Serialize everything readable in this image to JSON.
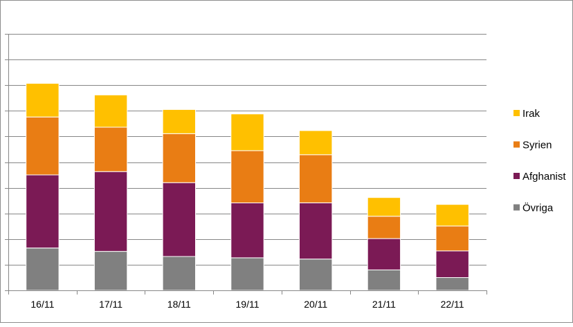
{
  "chart_data": {
    "type": "bar",
    "stacked": true,
    "categories": [
      "16/11",
      "17/11",
      "18/11",
      "19/11",
      "20/11",
      "21/11",
      "22/11"
    ],
    "series": [
      {
        "name": "Övriga",
        "color": "#808080",
        "values": [
          1.65,
          1.52,
          1.32,
          1.27,
          1.22,
          0.8,
          0.5
        ]
      },
      {
        "name": "Afghanist",
        "color": "#7b1a55",
        "values": [
          2.85,
          3.11,
          2.88,
          2.14,
          2.19,
          1.22,
          1.04
        ]
      },
      {
        "name": "Syrien",
        "color": "#e97d14",
        "values": [
          2.26,
          1.73,
          1.91,
          2.04,
          1.88,
          0.87,
          0.97
        ]
      },
      {
        "name": "Irak",
        "color": "#ffc000",
        "values": [
          1.31,
          1.26,
          0.94,
          1.43,
          0.94,
          0.73,
          0.84
        ]
      }
    ],
    "ylim": [
      0,
      10
    ],
    "grid": true,
    "legend_position": "right",
    "title": "",
    "xlabel": "",
    "ylabel": ""
  }
}
